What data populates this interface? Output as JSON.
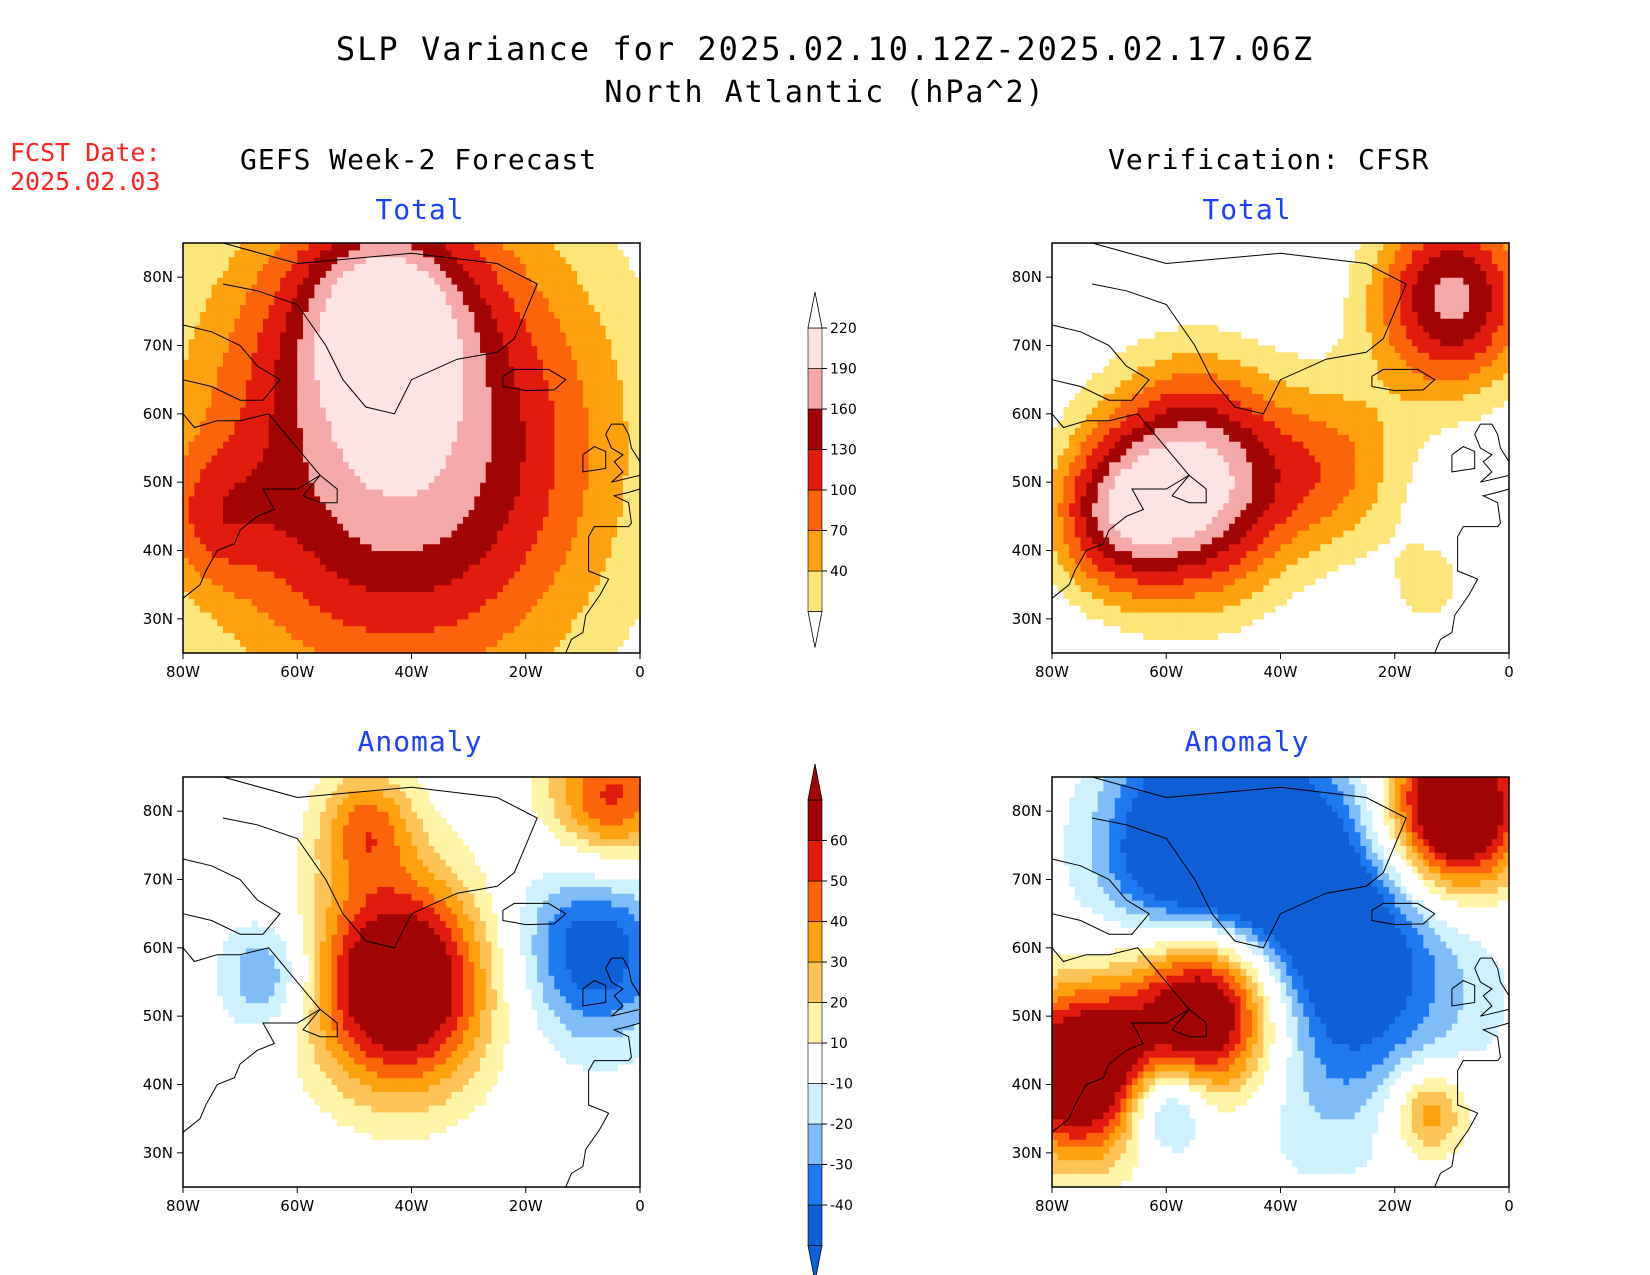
{
  "title": "SLP Variance for 2025.02.10.12Z-2025.02.17.06Z",
  "subtitle": "North Atlantic (hPa^2)",
  "fcst_date": {
    "label": "FCST Date:",
    "value": "2025.02.03"
  },
  "headings": {
    "left": "GEFS Week-2 Forecast",
    "right": "Verification: CFSR"
  },
  "panel_titles": {
    "total": "Total",
    "anomaly": "Anomaly"
  },
  "colorbars": {
    "total": {
      "levels": [
        "40",
        "70",
        "100",
        "130",
        "160",
        "190",
        "220"
      ],
      "colors": [
        "#fde57a",
        "#fda10f",
        "#fb640a",
        "#e21b0f",
        "#a20505",
        "#f4a8a8",
        "#fde3e3"
      ]
    },
    "anomaly": {
      "levels": [
        "-40",
        "-30",
        "-20",
        "-10",
        "10",
        "20",
        "30",
        "40",
        "50",
        "60"
      ],
      "colors": [
        "#0f5fd6",
        "#1f79ef",
        "#7fbcf8",
        "#cff1fd",
        "#ffffff",
        "#fef4a8",
        "#fdc357",
        "#fda10f",
        "#fb640a",
        "#e21b0f",
        "#a20505"
      ]
    }
  },
  "chart_data": [
    {
      "type": "heatmap",
      "panel": "forecast-total",
      "title": "Total",
      "x_ticks": [
        "80W",
        "60W",
        "40W",
        "20W",
        "0"
      ],
      "y_ticks": [
        "30N",
        "40N",
        "50N",
        "60N",
        "70N",
        "80N"
      ],
      "xlim": [
        -80,
        0
      ],
      "ylim": [
        25,
        85
      ],
      "colorbar": "total",
      "features": [
        {
          "value": 25,
          "sigma": 26,
          "amp": 225,
          "lon": -42,
          "lat": 55
        },
        {
          "value": 30,
          "sigma": 10,
          "amp": 130,
          "lon": -45,
          "lat": 75
        },
        {
          "value": 35,
          "sigma": 7,
          "amp": 60,
          "lon": -75,
          "lat": 45
        }
      ]
    },
    {
      "type": "heatmap",
      "panel": "verification-total",
      "title": "Total",
      "x_ticks": [
        "80W",
        "60W",
        "40W",
        "20W",
        "0"
      ],
      "y_ticks": [
        "30N",
        "40N",
        "50N",
        "60N",
        "70N",
        "80N"
      ],
      "xlim": [
        -80,
        0
      ],
      "ylim": [
        25,
        85
      ],
      "colorbar": "total",
      "features": [
        {
          "value": 0,
          "sigma": 12,
          "amp": 240,
          "lon": -55,
          "lat": 50
        },
        {
          "value": 0,
          "sigma": 8,
          "amp": 120,
          "lon": -70,
          "lat": 45
        },
        {
          "value": 0,
          "sigma": 10,
          "amp": 200,
          "lon": -10,
          "lat": 77
        },
        {
          "value": 0,
          "sigma": 9,
          "amp": 90,
          "lon": -30,
          "lat": 52
        },
        {
          "value": 0,
          "sigma": 5,
          "amp": 55,
          "lon": -14,
          "lat": 35
        }
      ]
    },
    {
      "type": "heatmap",
      "panel": "forecast-anomaly",
      "title": "Anomaly",
      "x_ticks": [
        "80W",
        "60W",
        "40W",
        "20W",
        "0"
      ],
      "y_ticks": [
        "30N",
        "40N",
        "50N",
        "60N",
        "70N",
        "80N"
      ],
      "xlim": [
        -80,
        0
      ],
      "ylim": [
        25,
        85
      ],
      "colorbar": "anomaly",
      "features": [
        {
          "value": 0,
          "sigma": 11,
          "amp": 90,
          "lon": -42,
          "lat": 55
        },
        {
          "value": 0,
          "sigma": 6,
          "amp": 40,
          "lon": -48,
          "lat": 78
        },
        {
          "value": 0,
          "sigma": 8,
          "amp": 55,
          "lon": -5,
          "lat": 82
        },
        {
          "value": 0,
          "sigma": 10,
          "amp": -50,
          "lon": -8,
          "lat": 60
        },
        {
          "value": 0,
          "sigma": 6,
          "amp": -35,
          "lon": -65,
          "lat": 56
        }
      ]
    },
    {
      "type": "heatmap",
      "panel": "verification-anomaly",
      "title": "Anomaly",
      "x_ticks": [
        "80W",
        "60W",
        "40W",
        "20W",
        "0"
      ],
      "y_ticks": [
        "30N",
        "40N",
        "50N",
        "60N",
        "70N",
        "80N"
      ],
      "xlim": [
        -80,
        0
      ],
      "ylim": [
        25,
        85
      ],
      "colorbar": "anomaly",
      "features": [
        {
          "value": 0,
          "sigma": 10,
          "amp": 120,
          "lon": -52,
          "lat": 52
        },
        {
          "value": 0,
          "sigma": 9,
          "amp": 90,
          "lon": -75,
          "lat": 42
        },
        {
          "value": 0,
          "sigma": 9,
          "amp": 110,
          "lon": -10,
          "lat": 80
        },
        {
          "value": 0,
          "sigma": 18,
          "amp": -75,
          "lon": -35,
          "lat": 62
        },
        {
          "value": 0,
          "sigma": 11,
          "amp": -60,
          "lon": -55,
          "lat": 75
        },
        {
          "value": 0,
          "sigma": 5,
          "amp": -50,
          "lon": -60,
          "lat": 37
        },
        {
          "value": 0,
          "sigma": 5,
          "amp": 45,
          "lon": -14,
          "lat": 36
        }
      ]
    }
  ]
}
